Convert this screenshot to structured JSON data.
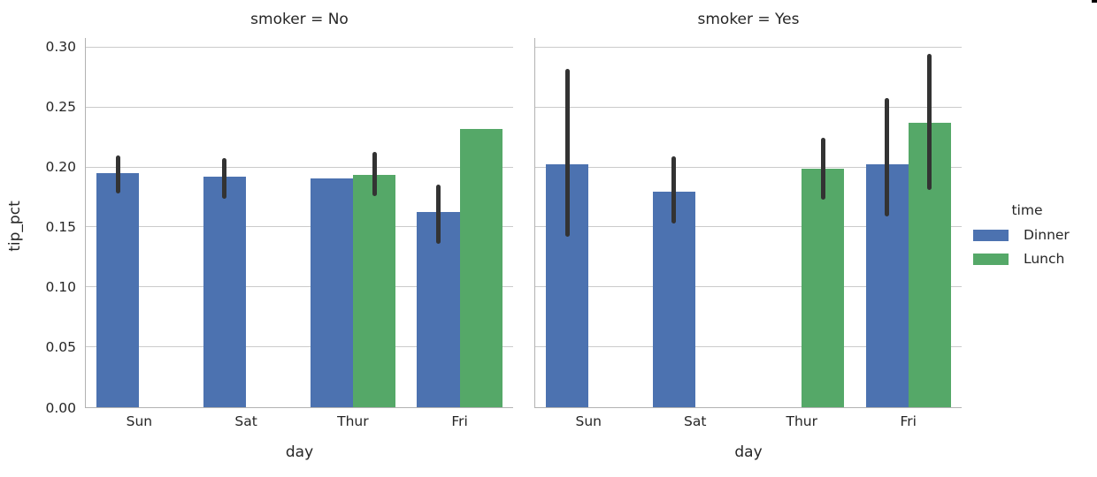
{
  "chart_data": {
    "type": "bar",
    "facet_variable": "smoker",
    "categories": [
      "Sun",
      "Sat",
      "Thur",
      "Fri"
    ],
    "xlabel": "day",
    "ylabel": "tip_pct",
    "yticks": [
      "0.00",
      "0.05",
      "0.10",
      "0.15",
      "0.20",
      "0.25",
      "0.30"
    ],
    "ylim": [
      0,
      0.308
    ],
    "grid": true,
    "facets": [
      {
        "title": "smoker = No",
        "series": [
          {
            "name": "Dinner",
            "values": [
              0.195,
              0.192,
              0.191,
              0.163
            ],
            "errors": [
              [
                0.178,
                0.21
              ],
              [
                0.174,
                0.208
              ],
              null,
              [
                0.136,
                0.186
              ]
            ]
          },
          {
            "name": "Lunch",
            "values": [
              null,
              null,
              0.194,
              0.232
            ],
            "errors": [
              null,
              null,
              [
                0.176,
                0.213
              ],
              null
            ]
          }
        ]
      },
      {
        "title": "smoker = Yes",
        "series": [
          {
            "name": "Dinner",
            "values": [
              0.203,
              0.18,
              null,
              0.203
            ],
            "errors": [
              [
                0.142,
                0.282
              ],
              [
                0.153,
                0.209
              ],
              null,
              [
                0.159,
                0.258
              ]
            ]
          },
          {
            "name": "Lunch",
            "values": [
              null,
              null,
              0.199,
              0.237
            ],
            "errors": [
              null,
              null,
              [
                0.173,
                0.225
              ],
              [
                0.181,
                0.295
              ]
            ]
          }
        ]
      }
    ],
    "legend": {
      "title": "time",
      "position": "right",
      "entries": [
        {
          "label": "Dinner",
          "color": "#4c72b0"
        },
        {
          "label": "Lunch",
          "color": "#55a868"
        }
      ]
    },
    "style": {
      "errorbar_color": "#333333",
      "dinner_color": "#4c72b0",
      "lunch_color": "#55a868"
    }
  }
}
